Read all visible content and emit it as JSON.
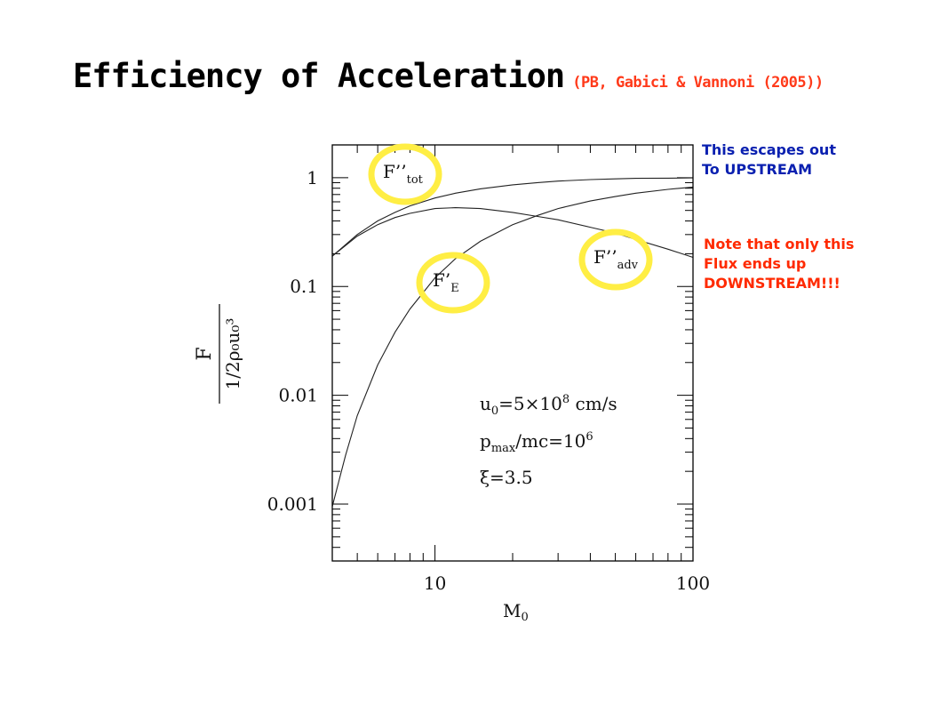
{
  "title": {
    "main": "Efficiency of Acceleration",
    "citation": "(PB, Gabici & Vannoni (2005))"
  },
  "notes": {
    "upstream": [
      "This escapes out",
      "To UPSTREAM"
    ],
    "downstream": [
      "Note that only this",
      "Flux ends up",
      "DOWNSTREAM!!!"
    ]
  },
  "highlight_color": "#ffee44",
  "chart_data": {
    "type": "line",
    "x_scale": "log",
    "y_scale": "log",
    "xlim": [
      4,
      100
    ],
    "ylim": [
      0.0003,
      2
    ],
    "x_ticks": [
      {
        "value": 10,
        "label": "10"
      },
      {
        "value": 100,
        "label": "100"
      }
    ],
    "y_ticks": [
      {
        "value": 1,
        "label": "1"
      },
      {
        "value": 0.1,
        "label": "0.1"
      },
      {
        "value": 0.01,
        "label": "0.01"
      },
      {
        "value": 0.001,
        "label": "0.001"
      }
    ],
    "xlabel": {
      "main": "M",
      "sub": "0"
    },
    "ylabel": {
      "numerator": "F",
      "denominator": "1/2ρ₀u₀³"
    },
    "annotations": {
      "line1": {
        "a": "u",
        "sub": "0",
        "b": "=5×10",
        "sup": "8",
        "c": " cm/s"
      },
      "line2": {
        "a": "p",
        "sub": "max",
        "b": "/mc=10",
        "sup": "6"
      },
      "line3": {
        "a": "ξ=3.5"
      }
    },
    "series": [
      {
        "name": "F'tot",
        "label_main": "F’’",
        "label_sub": "tot",
        "x": [
          4,
          5,
          6,
          7,
          8,
          10,
          12,
          15,
          20,
          25,
          30,
          40,
          50,
          60,
          80,
          100
        ],
        "y": [
          0.19,
          0.3,
          0.4,
          0.48,
          0.55,
          0.65,
          0.72,
          0.79,
          0.86,
          0.9,
          0.93,
          0.96,
          0.975,
          0.985,
          0.99,
          0.995
        ]
      },
      {
        "name": "F'adv",
        "label_main": "F’’",
        "label_sub": "adv",
        "x": [
          4,
          5,
          6,
          7,
          8,
          10,
          12,
          15,
          20,
          25,
          30,
          40,
          50,
          60,
          80,
          100
        ],
        "y": [
          0.19,
          0.29,
          0.37,
          0.43,
          0.47,
          0.52,
          0.53,
          0.52,
          0.48,
          0.44,
          0.41,
          0.35,
          0.31,
          0.27,
          0.22,
          0.185
        ]
      },
      {
        "name": "F'E",
        "label_main": "F’",
        "label_sub": "E",
        "x": [
          4,
          4.5,
          5,
          6,
          7,
          8,
          10,
          12,
          15,
          20,
          25,
          30,
          40,
          50,
          60,
          80,
          100
        ],
        "y": [
          0.00095,
          0.0028,
          0.0065,
          0.019,
          0.038,
          0.062,
          0.12,
          0.18,
          0.26,
          0.37,
          0.45,
          0.52,
          0.61,
          0.67,
          0.72,
          0.78,
          0.82
        ]
      }
    ]
  }
}
